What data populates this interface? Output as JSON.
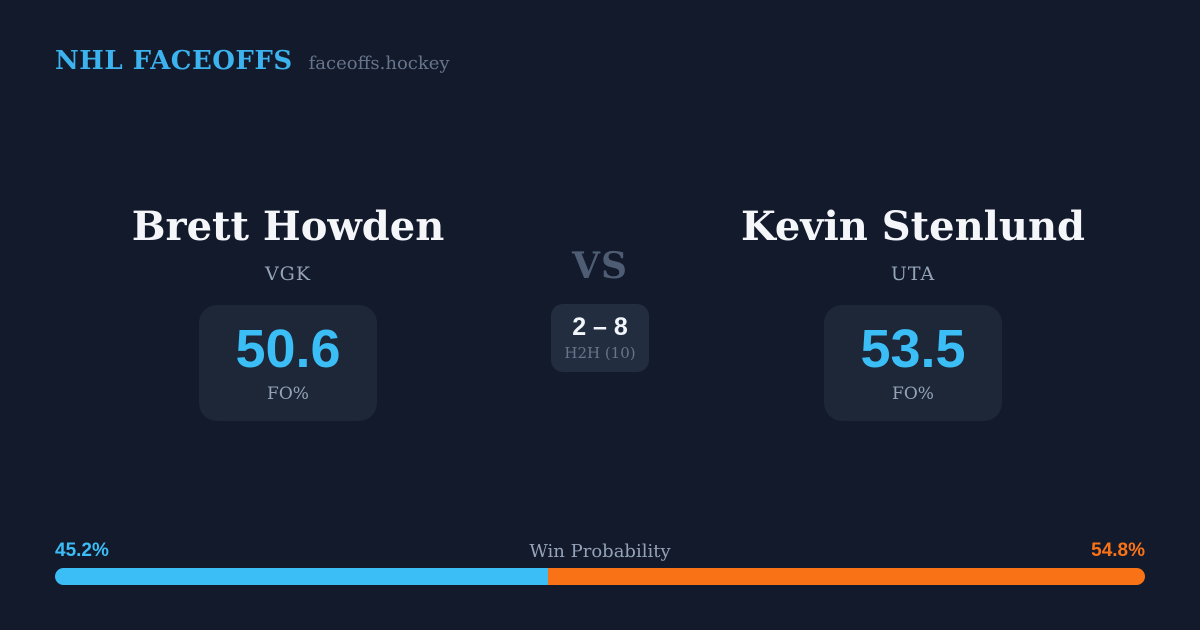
{
  "header": {
    "brand": "NHL FACEOFFS",
    "site": "faceoffs.hockey"
  },
  "matchup": {
    "player_left": {
      "name": "Brett Howden",
      "team": "VGK",
      "fo_pct": "50.6",
      "stat_label": "FO%"
    },
    "player_right": {
      "name": "Kevin Stenlund",
      "team": "UTA",
      "fo_pct": "53.5",
      "stat_label": "FO%"
    },
    "vs_label": "VS",
    "h2h": {
      "score": "2 – 8",
      "sample_label": "H2H (10)"
    }
  },
  "win_probability": {
    "title": "Win Probability",
    "left_label": "45.2%",
    "right_label": "54.8%",
    "left_value": 45.2,
    "right_value": 54.8,
    "left_color": "#3bbdf6",
    "right_color": "#f97316"
  },
  "colors": {
    "background": "#121a2b",
    "card": "#1d2737",
    "h2h_card": "#222d3f",
    "accent_blue": "#3bbdf6",
    "accent_orange": "#f97316",
    "brand_blue": "#3cb2ee",
    "text_primary": "#f4f6f9",
    "text_muted": "#94a3b8",
    "text_dim": "#67758c"
  },
  "chart_data": {
    "type": "bar",
    "title": "Win Probability",
    "subtitle": "Single horizontal stacked probability bar",
    "categories": [
      "Brett Howden (VGK)",
      "Kevin Stenlund (UTA)"
    ],
    "values": [
      45.2,
      54.8
    ],
    "unit": "%",
    "colors": [
      "#3bbdf6",
      "#f97316"
    ],
    "xlim": [
      0,
      100
    ],
    "supporting_stats": {
      "faceoff_pct": {
        "Brett Howden": 50.6,
        "Kevin Stenlund": 53.5
      },
      "head_to_head": {
        "score": "2 – 8",
        "sample_size": 10
      }
    },
    "legend_position": "above-bar-ends",
    "grid": false
  }
}
